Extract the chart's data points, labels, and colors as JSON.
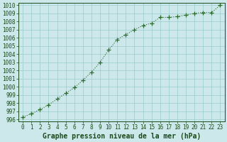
{
  "x": [
    0,
    1,
    2,
    3,
    4,
    5,
    6,
    7,
    8,
    9,
    10,
    11,
    12,
    13,
    14,
    15,
    16,
    17,
    18,
    19,
    20,
    21,
    22,
    23
  ],
  "y": [
    996.3,
    996.7,
    997.2,
    997.8,
    998.5,
    999.2,
    999.9,
    1000.8,
    1001.8,
    1003.0,
    1004.5,
    1005.8,
    1006.4,
    1007.0,
    1007.5,
    1007.8,
    1008.5,
    1008.5,
    1008.6,
    1008.8,
    1009.0,
    1009.1,
    1009.1,
    1010.0
  ],
  "line_color": "#2d6a2d",
  "marker": "+",
  "bg_color": "#cce8ea",
  "grid_color": "#99cccc",
  "xlabel": "Graphe pression niveau de la mer (hPa)",
  "xlim": [
    -0.5,
    23.5
  ],
  "ylim": [
    995.8,
    1010.3
  ],
  "yticks": [
    996,
    997,
    998,
    999,
    1000,
    1001,
    1002,
    1003,
    1004,
    1005,
    1006,
    1007,
    1008,
    1009,
    1010
  ],
  "xticks": [
    0,
    1,
    2,
    3,
    4,
    5,
    6,
    7,
    8,
    9,
    10,
    11,
    12,
    13,
    14,
    15,
    16,
    17,
    18,
    19,
    20,
    21,
    22,
    23
  ],
  "tick_fontsize": 5.5,
  "label_fontsize": 7,
  "text_color": "#1a4a1a",
  "linewidth": 0.8,
  "markersize": 4.0,
  "markeredgewidth": 0.9
}
